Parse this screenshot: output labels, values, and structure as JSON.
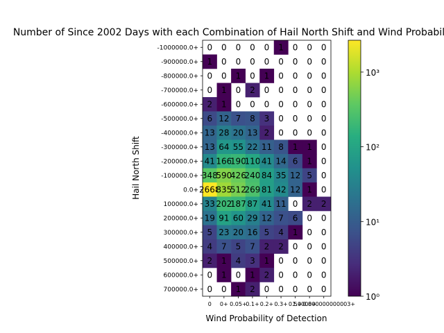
{
  "chart_data": {
    "type": "heatmap",
    "title": "Number of Since 2002 Days with each Combination of Hail North Shift and Wind Probability of Detection",
    "xlabel": "Wind Probability of Detection",
    "ylabel": "Hail North Shift",
    "x_tick_labels": [
      "0",
      "0+",
      "0.05+",
      "0.1+",
      "0.2+",
      "0.3+",
      "0.5+",
      "0.8+",
      "1.000000000000003+"
    ],
    "y_tick_labels": [
      "-1000000.0+",
      "-900000.0+",
      "-800000.0+",
      "-700000.0+",
      "-600000.0+",
      "-500000.0+",
      "-400000.0+",
      "-300000.0+",
      "-200000.0+",
      "-100000.0+",
      "0.0+",
      "100000.0+",
      "200000.0+",
      "300000.0+",
      "400000.0+",
      "500000.0+",
      "600000.0+",
      "700000.0+"
    ],
    "values": [
      [
        0,
        0,
        0,
        0,
        0,
        1,
        0,
        0,
        0
      ],
      [
        1,
        0,
        0,
        0,
        0,
        0,
        0,
        0,
        0
      ],
      [
        0,
        0,
        1,
        0,
        1,
        0,
        0,
        0,
        0
      ],
      [
        0,
        1,
        0,
        2,
        0,
        0,
        0,
        0,
        0
      ],
      [
        2,
        1,
        0,
        0,
        0,
        0,
        0,
        0,
        0
      ],
      [
        6,
        12,
        7,
        8,
        3,
        0,
        0,
        0,
        0
      ],
      [
        13,
        28,
        20,
        13,
        2,
        0,
        0,
        0,
        0
      ],
      [
        13,
        64,
        55,
        22,
        11,
        8,
        1,
        1,
        0
      ],
      [
        41,
        166,
        190,
        110,
        41,
        14,
        6,
        1,
        0
      ],
      [
        348,
        590,
        426,
        240,
        84,
        35,
        12,
        5,
        0
      ],
      [
        2668,
        835,
        512,
        269,
        81,
        42,
        12,
        1,
        0
      ],
      [
        33,
        202,
        187,
        87,
        41,
        11,
        0,
        2,
        2
      ],
      [
        19,
        91,
        60,
        29,
        12,
        7,
        6,
        0,
        0
      ],
      [
        5,
        23,
        20,
        16,
        5,
        4,
        1,
        0,
        0
      ],
      [
        4,
        7,
        5,
        7,
        2,
        2,
        0,
        0,
        0
      ],
      [
        2,
        1,
        4,
        3,
        1,
        0,
        0,
        0,
        0
      ],
      [
        0,
        1,
        0,
        1,
        2,
        0,
        0,
        0,
        0
      ],
      [
        0,
        0,
        1,
        2,
        0,
        0,
        0,
        0,
        0
      ]
    ],
    "colorbar": {
      "scale": "log",
      "colormap": "viridis",
      "range": [
        1,
        2668
      ],
      "tick_labels": [
        "10⁰",
        "10¹",
        "10²",
        "10³"
      ]
    }
  }
}
